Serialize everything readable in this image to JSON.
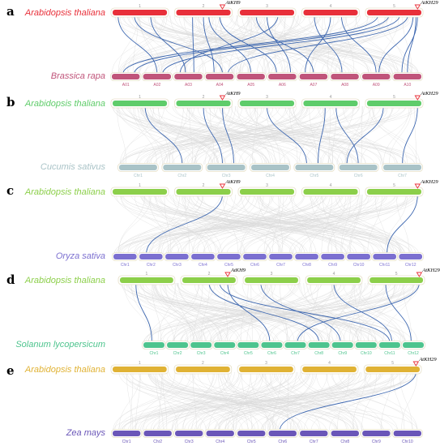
{
  "panels": [
    {
      "letter": "a",
      "top_label": "Arabidopsis thaliana",
      "top_color": "#e8303a",
      "top_chrs": [
        "1",
        "2",
        "3",
        "4",
        "5"
      ],
      "markers": [
        {
          "label": "AtKH9",
          "chr": 1,
          "pos": 0.85
        },
        {
          "label": "AtKH29",
          "chr": 4,
          "pos": 0.93
        }
      ],
      "bottom_label": "Brassica rapa",
      "bottom_color": "#c0547a",
      "bottom_chrs": [
        "A01",
        "A02",
        "A03",
        "A04",
        "A05",
        "A06",
        "A07",
        "A08",
        "A09",
        "A10"
      ],
      "links": [
        [
          0,
          0.1,
          1,
          0.5
        ],
        [
          0,
          0.4,
          3,
          0.6
        ],
        [
          0,
          0.7,
          2,
          0.4
        ],
        [
          1,
          0.3,
          2,
          0.7
        ],
        [
          1,
          0.5,
          3,
          0.3
        ],
        [
          1,
          0.6,
          4,
          0.5
        ],
        [
          1,
          0.8,
          5,
          0.3
        ],
        [
          2,
          0.3,
          6,
          0.5
        ],
        [
          2,
          0.5,
          5,
          0.8
        ],
        [
          2,
          0.7,
          2,
          0.2
        ],
        [
          3,
          0.2,
          7,
          0.4
        ],
        [
          3,
          0.5,
          6,
          0.2
        ],
        [
          3,
          0.7,
          8,
          0.5
        ],
        [
          4,
          0.2,
          0,
          0.4
        ],
        [
          4,
          0.4,
          0,
          0.8
        ],
        [
          4,
          0.6,
          1,
          0.7
        ],
        [
          4,
          0.75,
          3,
          0.8
        ],
        [
          4,
          0.85,
          8,
          0.6
        ],
        [
          4,
          0.9,
          9,
          0.5
        ],
        [
          4,
          0.93,
          9,
          0.3
        ]
      ]
    },
    {
      "letter": "b",
      "top_label": "Arabidopsis thaliana",
      "top_color": "#5fcc6a",
      "top_chrs": [
        "1",
        "2",
        "3",
        "4",
        "5"
      ],
      "markers": [
        {
          "label": "AtKH9",
          "chr": 1,
          "pos": 0.85
        },
        {
          "label": "AtKH29",
          "chr": 4,
          "pos": 0.93
        }
      ],
      "bottom_label": "Cucumis sativus",
      "bottom_color": "#a9c3c7",
      "bottom_chrs": [
        "Chr1",
        "Chr2",
        "Chr3",
        "Chr4",
        "Chr5",
        "Chr6",
        "Chr7"
      ],
      "links": [
        [
          0,
          0.6,
          1,
          0.5
        ],
        [
          1,
          0.5,
          2,
          0.4
        ],
        [
          1,
          0.85,
          2,
          0.7
        ],
        [
          2,
          0.5,
          4,
          0.3
        ],
        [
          3,
          0.4,
          4,
          0.6
        ],
        [
          3,
          0.6,
          5,
          0.5
        ],
        [
          4,
          0.3,
          5,
          0.2
        ],
        [
          4,
          0.93,
          6,
          0.5
        ]
      ]
    },
    {
      "letter": "c",
      "top_label": "Arabidopsis thaliana",
      "top_color": "#8ccf4a",
      "top_chrs": [
        "1",
        "2",
        "3",
        "4",
        "5"
      ],
      "markers": [
        {
          "label": "AtKH9",
          "chr": 1,
          "pos": 0.85
        },
        {
          "label": "AtKH29",
          "chr": 4,
          "pos": 0.93
        }
      ],
      "bottom_label": "Oryza sativa",
      "bottom_color": "#7b6fd0",
      "bottom_chrs": [
        "Chr1",
        "Chr2",
        "Chr3",
        "Chr4",
        "Chr5",
        "Chr6",
        "Chr7",
        "Chr8",
        "Chr9",
        "Chr10",
        "Chr11",
        "Chr12"
      ],
      "links": [
        [
          1,
          0.85,
          1,
          0.3
        ],
        [
          4,
          0.93,
          10,
          0.6
        ]
      ]
    },
    {
      "letter": "d",
      "top_label": "Arabidopsis thaliana",
      "top_color": "#8ccf4a",
      "top_chrs": [
        "1",
        "2",
        "3",
        "4",
        "5"
      ],
      "markers": [
        {
          "label": "AtKH9",
          "chr": 1,
          "pos": 0.85
        },
        {
          "label": "AtKH29",
          "chr": 4,
          "pos": 0.93
        }
      ],
      "bottom_label": "Solanum lycopersicum",
      "bottom_color": "#4ec48e",
      "bottom_chrs": [
        "Chr1",
        "Chr2",
        "Chr3",
        "Chr4",
        "Chr5",
        "Chr6",
        "Chr7",
        "Chr8",
        "Chr9",
        "Chr10",
        "Chr11",
        "Chr12"
      ],
      "links": [
        [
          0,
          0.3,
          0,
          0.4
        ],
        [
          1,
          0.85,
          5,
          0.4
        ],
        [
          1,
          0.5,
          7,
          0.5
        ],
        [
          1,
          0.7,
          10,
          0.5
        ],
        [
          2,
          0.3,
          8,
          0.4
        ],
        [
          3,
          0.5,
          10,
          0.6
        ],
        [
          4,
          0.3,
          11,
          0.4
        ],
        [
          4,
          0.93,
          6,
          0.6
        ]
      ]
    },
    {
      "letter": "e",
      "top_label": "Arabidopsis thaliana",
      "top_color": "#e0b234",
      "top_chrs": [
        "1",
        "2",
        "3",
        "4",
        "5"
      ],
      "markers": [
        {
          "label": "AtKH29",
          "chr": 4,
          "pos": 0.93
        }
      ],
      "bottom_label": "Zea mays",
      "bottom_color": "#6a56b8",
      "bottom_chrs": [
        "Chr1",
        "Chr2",
        "Chr3",
        "Chr4",
        "Chr5",
        "Chr6",
        "Chr7",
        "Chr8",
        "Chr9",
        "Chr10"
      ],
      "links": [
        [
          4,
          0.93,
          5,
          0.4
        ]
      ]
    }
  ]
}
